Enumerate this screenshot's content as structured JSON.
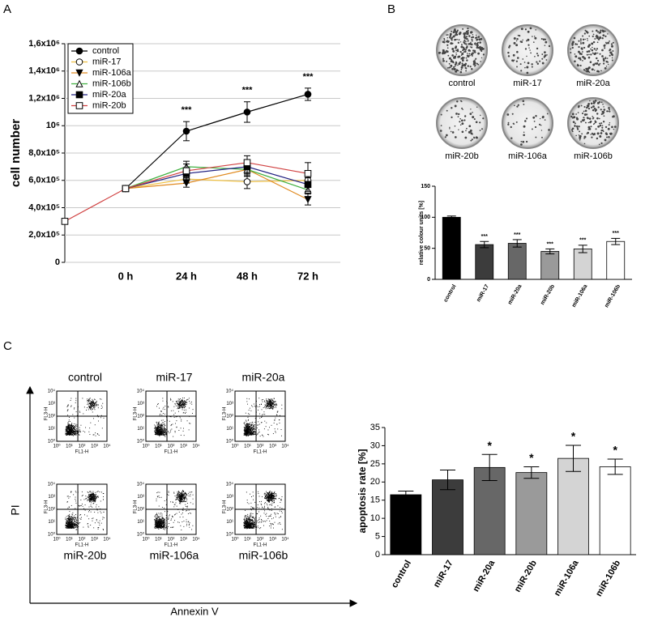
{
  "panels": [
    "A",
    "B",
    "C"
  ],
  "chart_data": [
    {
      "type": "line",
      "ylabel": "cell number",
      "categories": [
        null,
        "0 h",
        "24 h",
        "48 h",
        "72 h"
      ],
      "ylim": [
        0,
        1600000
      ],
      "yticks": [
        0,
        {
          "value": 200000,
          "label": "2,0x10⁵"
        },
        {
          "value": 400000,
          "label": "4,0x10⁵"
        },
        {
          "value": 600000,
          "label": "6,0x10⁵"
        },
        {
          "value": 800000,
          "label": "8,0x10⁵"
        },
        {
          "value": 1000000,
          "label": "10⁶"
        },
        {
          "value": 1200000,
          "label": "1,2x10⁶"
        },
        {
          "value": 1400000,
          "label": "1,4x10⁶"
        },
        {
          "value": 1600000,
          "label": "1,6x10⁶"
        }
      ],
      "grid": true,
      "significance": [
        null,
        null,
        "***",
        "***",
        "***"
      ],
      "series": [
        {
          "name": "control",
          "color": "#000000",
          "marker": "filled-circle",
          "values": [
            null,
            540000,
            960000,
            1100000,
            1230000
          ],
          "errors": [
            null,
            null,
            70000,
            75000,
            45000
          ]
        },
        {
          "name": "miR-17",
          "color": "#f0c040",
          "marker": "open-circle",
          "values": [
            null,
            540000,
            610000,
            590000,
            600000
          ],
          "errors": [
            null,
            null,
            30000,
            50000,
            40000
          ]
        },
        {
          "name": "miR-106a",
          "color": "#e08a20",
          "marker": "filled-triangle-down",
          "values": [
            null,
            540000,
            580000,
            680000,
            460000
          ],
          "errors": [
            null,
            null,
            30000,
            50000,
            40000
          ]
        },
        {
          "name": "miR-106b",
          "color": "#40b040",
          "marker": "open-triangle-up",
          "values": [
            null,
            540000,
            700000,
            680000,
            530000
          ],
          "errors": [
            null,
            null,
            40000,
            50000,
            50000
          ]
        },
        {
          "name": "miR-20a",
          "color": "#202080",
          "marker": "filled-square",
          "values": [
            null,
            540000,
            650000,
            700000,
            570000
          ],
          "errors": [
            null,
            null,
            40000,
            50000,
            50000
          ]
        },
        {
          "name": "miR-20b",
          "color": "#d04040",
          "marker": "open-square",
          "values": [
            300000,
            540000,
            670000,
            730000,
            650000
          ],
          "errors": [
            null,
            null,
            50000,
            50000,
            80000
          ]
        }
      ]
    },
    {
      "type": "bar",
      "ylabel": "relative colour units [%]",
      "categories": [
        "control",
        "miR-17",
        "miR-20a",
        "miR-20b",
        "miR-106a",
        "miR-106b"
      ],
      "values": [
        100,
        56,
        58,
        45,
        49,
        61
      ],
      "errors": [
        2,
        5,
        6,
        4,
        6,
        5
      ],
      "colors": [
        "#000000",
        "#3c3c3c",
        "#676767",
        "#9a9a9a",
        "#d4d4d4",
        "#ffffff"
      ],
      "significance": [
        null,
        "***",
        "***",
        "***",
        "***",
        "***"
      ],
      "ylim": [
        0,
        150
      ],
      "yticks": [
        0,
        50,
        100,
        150
      ],
      "grid": false
    },
    {
      "type": "bar",
      "ylabel": "apoptosis rate [%]",
      "categories": [
        "control",
        "miR-17",
        "miR-20a",
        "miR-20b",
        "miR-106a",
        "miR-106b"
      ],
      "values": [
        16.5,
        20.6,
        24,
        22.6,
        26.5,
        24.2
      ],
      "errors": [
        1,
        2.7,
        3.6,
        1.6,
        3.6,
        2.1
      ],
      "colors": [
        "#000000",
        "#3c3c3c",
        "#676767",
        "#9a9a9a",
        "#d4d4d4",
        "#ffffff"
      ],
      "significance": [
        null,
        null,
        "*",
        "*",
        "*",
        "*"
      ],
      "ylim": [
        0,
        35
      ],
      "yticks": [
        0,
        5,
        10,
        15,
        20,
        25,
        30,
        35
      ],
      "grid": false
    }
  ],
  "colony_assay": {
    "labels": [
      "control",
      "miR-17",
      "miR-20a",
      "miR-20b",
      "miR-106a",
      "miR-106b"
    ]
  },
  "flow_cytometry": {
    "samples": [
      "control",
      "miR-17",
      "miR-20a",
      "miR-20b",
      "miR-106a",
      "miR-106b"
    ],
    "plot_y_label": "FL3-H",
    "plot_x_label": "FL1-H",
    "ticks": [
      "10⁰",
      "10¹",
      "10²",
      "10³",
      "10⁴"
    ],
    "y_title": "PI",
    "x_title": "Annexin V"
  }
}
